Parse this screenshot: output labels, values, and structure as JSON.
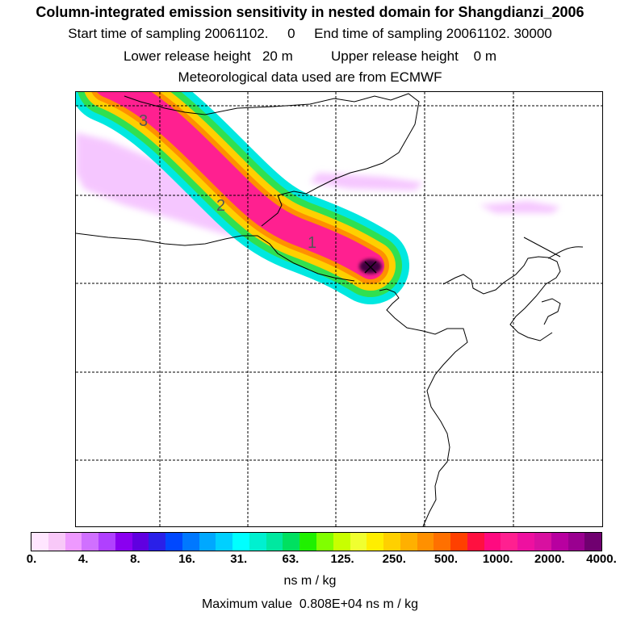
{
  "header": {
    "title": "Column-integrated emission sensitivity in nested domain for Shangdianzi_2006",
    "sampling_line": "Start time of sampling 20061102.     0     End time of sampling 20061102. 30000",
    "release_line": "Lower release height   20 m          Upper release height    0 m",
    "met_line": "Meteorological data used are from ECMWF"
  },
  "map": {
    "plume_labels": [
      "3",
      "2",
      "1"
    ],
    "colors": {
      "outer": "#ee99ff",
      "edge": "#00e8e0",
      "green": "#30e050",
      "yellow": "#ffd000",
      "orange": "#ff9000",
      "magenta": "#ff2090",
      "core": "#400040"
    }
  },
  "legend": {
    "colors": [
      "#ffe6ff",
      "#f8c8f8",
      "#ee99ff",
      "#d070ff",
      "#b040ff",
      "#8a00f0",
      "#6000e0",
      "#2a20e8",
      "#0048ff",
      "#0078ff",
      "#00a8ff",
      "#00d0ff",
      "#00ffff",
      "#00f0d0",
      "#00e8a0",
      "#00e060",
      "#20f000",
      "#80ff00",
      "#c8ff00",
      "#f0ff30",
      "#ffee00",
      "#ffd000",
      "#ffb000",
      "#ff9000",
      "#ff7000",
      "#ff4000",
      "#ff1040",
      "#ff0a80",
      "#ff2090",
      "#ee10a0",
      "#d810a0",
      "#b800a0",
      "#9a0090",
      "#700070"
    ],
    "ticks": [
      "0.",
      "4.",
      "8.",
      "16.",
      "31.",
      "63.",
      "125.",
      "250.",
      "500.",
      "1000.",
      "2000.",
      "4000."
    ],
    "units": "ns m / kg"
  },
  "footer": {
    "max_value_line": "Maximum value  0.808E+04 ns m / kg"
  }
}
